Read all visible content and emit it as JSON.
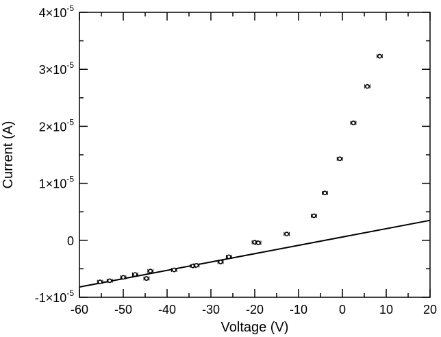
{
  "chart_data": {
    "type": "scatter",
    "xlabel": "Voltage (V)",
    "ylabel": "Current (A)",
    "xlim": [
      -60,
      20
    ],
    "ylim": [
      -1e-05,
      4e-05
    ],
    "grid": false,
    "x_ticks": [
      {
        "value": -60,
        "label": "-60"
      },
      {
        "value": -50,
        "label": "-50"
      },
      {
        "value": -40,
        "label": "-40"
      },
      {
        "value": -30,
        "label": "-30"
      },
      {
        "value": -20,
        "label": "-20"
      },
      {
        "value": -10,
        "label": "-10"
      },
      {
        "value": 0,
        "label": "0"
      },
      {
        "value": 10,
        "label": "10"
      },
      {
        "value": 20,
        "label": "20"
      }
    ],
    "y_ticks": [
      {
        "value": -1e-05,
        "mantissa": "-1×10",
        "exponent": "-5"
      },
      {
        "value": 0,
        "mantissa": "0",
        "exponent": ""
      },
      {
        "value": 1e-05,
        "mantissa": "1×10",
        "exponent": "-5"
      },
      {
        "value": 2e-05,
        "mantissa": "2×10",
        "exponent": "-5"
      },
      {
        "value": 3e-05,
        "mantissa": "3×10",
        "exponent": "-5"
      },
      {
        "value": 4e-05,
        "mantissa": "4×10",
        "exponent": "-5"
      }
    ],
    "series": [
      {
        "type": "scatter",
        "x": [
          -55.3,
          -53.1,
          -50.0,
          -47.3,
          -44.7,
          -43.8,
          -38.4,
          -34.1,
          -33.3,
          -27.8,
          -25.9,
          -20.0,
          -19.2,
          -12.7,
          -6.5,
          -4.0,
          -0.6,
          2.5,
          5.7,
          8.5
        ],
        "y": [
          -7.3e-06,
          -7.1e-06,
          -6.5e-06,
          -6e-06,
          -6.7e-06,
          -5.4e-06,
          -5.2e-06,
          -4.5e-06,
          -4.4e-06,
          -3.8e-06,
          -2.9e-06,
          -3.5e-07,
          -4.5e-07,
          1.1e-06,
          4.3e-06,
          8.3e-06,
          1.43e-05,
          2.06e-05,
          2.7e-05,
          3.23e-05
        ],
        "xerr": [
          0.6,
          0.6,
          0.6,
          0.6,
          0.6,
          0.6,
          0.6,
          0.6,
          0.6,
          0.6,
          0.6,
          0.6,
          0.6,
          0.6,
          0.6,
          0.6,
          0.6,
          0.6,
          0.6,
          0.6
        ]
      },
      {
        "type": "line",
        "x": [
          -60,
          20
        ],
        "y": [
          -8.2e-06,
          3.5e-06
        ]
      }
    ]
  }
}
